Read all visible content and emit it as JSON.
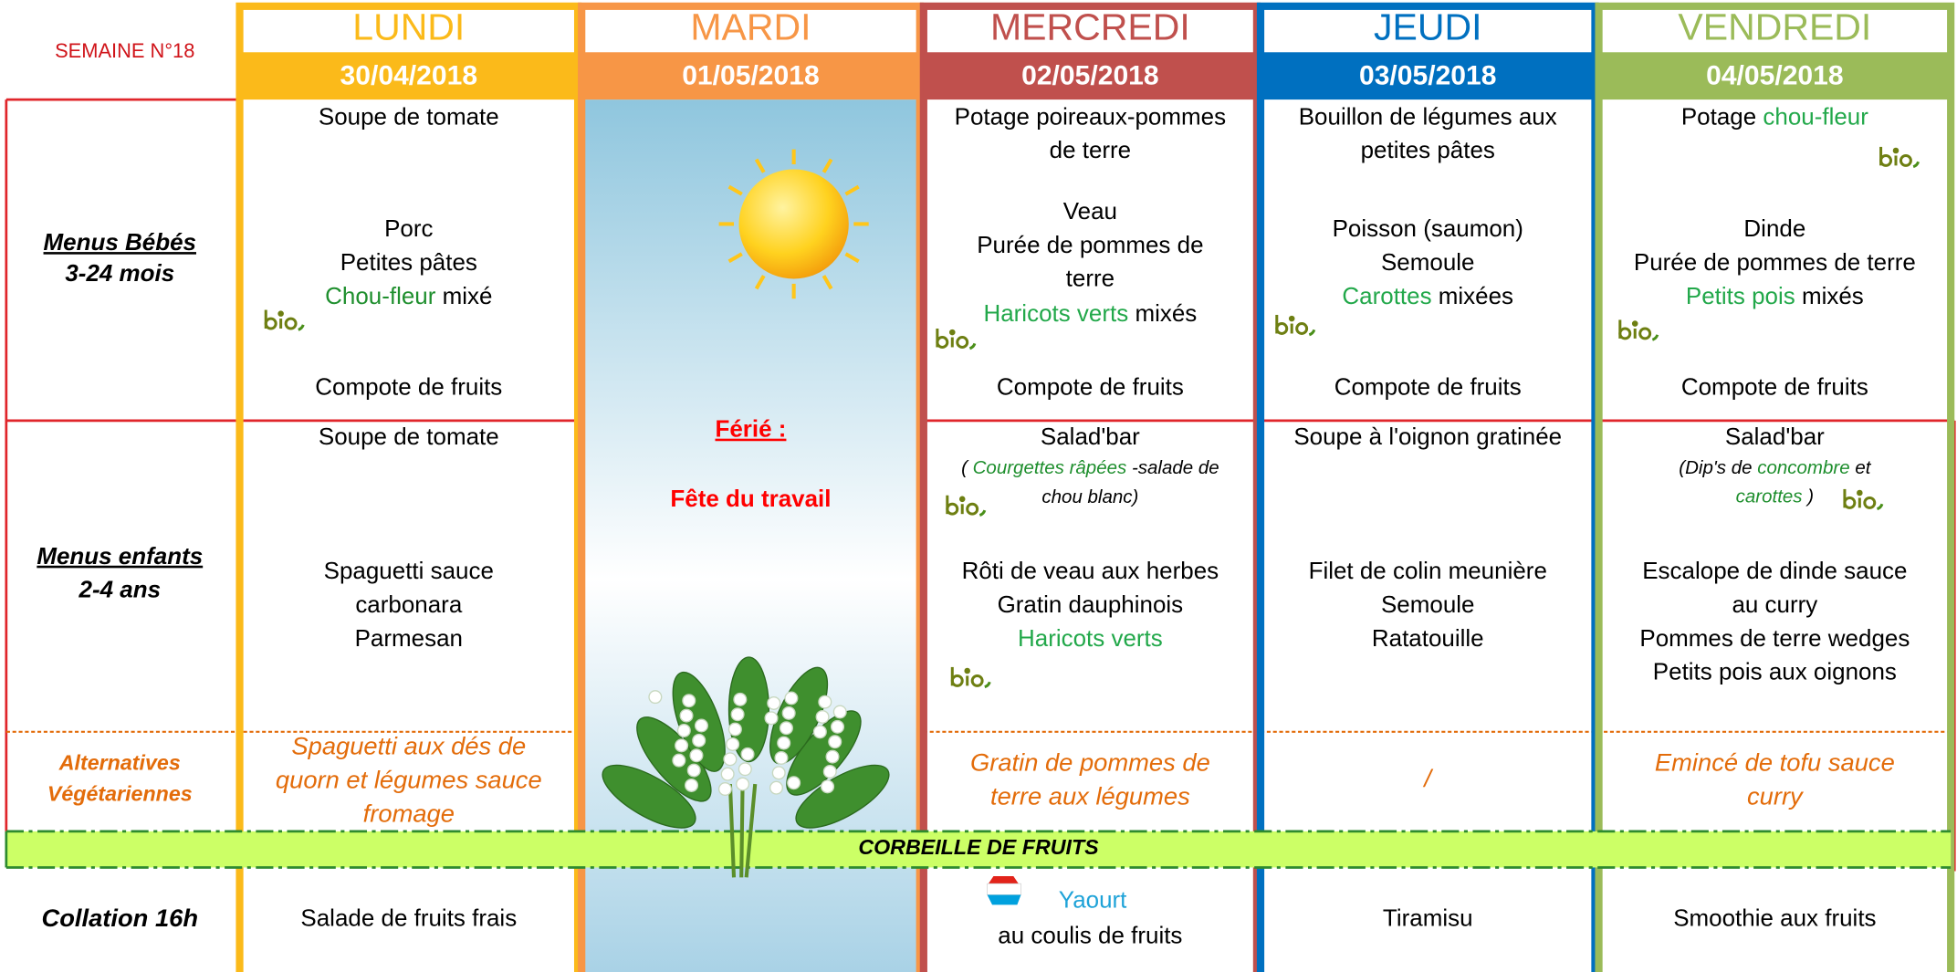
{
  "week": "SEMAINE N°18",
  "row_labels": {
    "bebes": [
      "Menus Bébés",
      "3-24 mois"
    ],
    "enfants": [
      "Menus enfants",
      "2-4 ans"
    ],
    "alternatives": [
      "Alternatives",
      "Végétariennes"
    ],
    "corbeille": "CORBEILLE DE FRUITS",
    "collation": "Collation 16h"
  },
  "days": [
    {
      "name": "LUNDI",
      "date": "30/04/2018",
      "color": "#FBBA1A",
      "bebes": [
        "Soupe de tomate",
        "Porc",
        "Petites pâtes",
        [
          {
            "text": "Chou-fleur",
            "color": "#1F8F2E"
          },
          " mixé"
        ],
        "Compote de fruits"
      ],
      "enfants": [
        "Soupe de tomate",
        "Spaguetti sauce",
        "carbonara",
        "Parmesan"
      ],
      "alternatives": [
        "Spaguetti aux dés de",
        "quorn et légumes sauce",
        "fromage"
      ],
      "collation": [
        "Salade de fruits frais"
      ]
    },
    {
      "name": "MARDI",
      "date": "01/05/2018",
      "color": "#F79646",
      "holiday_title": "Férié :",
      "holiday_name": "Fête du travail"
    },
    {
      "name": "MERCREDI",
      "date": "02/05/2018",
      "color": "#C0504D",
      "bebes": [
        "Potage poireaux-pommes",
        "de terre",
        "Veau",
        "Purée de pommes de",
        "terre",
        [
          {
            "text": "Haricots verts",
            "color": "#22A84A"
          },
          " mixés"
        ],
        "Compote de fruits"
      ],
      "enfants": [
        "Salad'bar",
        [
          "( ",
          {
            "text": "Courgettes râpées",
            "color": "#1F8F2E"
          },
          " -salade de"
        ],
        "chou blanc)",
        "Rôti de veau aux herbes",
        "Gratin dauphinois",
        [
          {
            "text": "Haricots verts",
            "color": "#22A84A"
          }
        ]
      ],
      "alternatives": [
        "Gratin de pommes de",
        "terre aux légumes"
      ],
      "collation": [
        [
          {
            "text": "Yaourt",
            "color": "#1FA3D8"
          }
        ],
        "au coulis de fruits"
      ]
    },
    {
      "name": "JEUDI",
      "date": "03/05/2018",
      "color": "#0070C0",
      "bebes": [
        "Bouillon de légumes aux",
        "petites pâtes",
        "Poisson (saumon)",
        "Semoule",
        [
          {
            "text": "Carottes",
            "color": "#22A84A"
          },
          " mixées"
        ],
        "Compote de fruits"
      ],
      "enfants": [
        "Soupe à l'oignon gratinée",
        "Filet de colin meunière",
        "Semoule",
        "Ratatouille"
      ],
      "alternatives": [
        "/"
      ],
      "collation": [
        "Tiramisu"
      ]
    },
    {
      "name": "VENDREDI",
      "date": "04/05/2018",
      "color": "#9BBB59",
      "bebes": [
        [
          "Potage ",
          {
            "text": "chou-fleur",
            "color": "#22A84A"
          }
        ],
        "Dinde",
        "Purée de pommes de terre",
        [
          {
            "text": "Petits pois",
            "color": "#22A84A"
          },
          " mixés"
        ],
        "Compote de fruits"
      ],
      "enfants": [
        "Salad'bar",
        [
          "(Dip's de ",
          {
            "text": "concombre",
            "color": "#1F8F2E"
          },
          " et"
        ],
        [
          {
            "text": "carottes",
            "color": "#1F8F2E"
          },
          " )"
        ],
        "Escalope de dinde sauce",
        "au curry",
        "Pommes de terre wedges",
        "Petits pois aux oignons"
      ],
      "alternatives": [
        "Emincé de tofu sauce",
        "curry"
      ],
      "collation": [
        "Smoothie aux fruits"
      ]
    }
  ]
}
